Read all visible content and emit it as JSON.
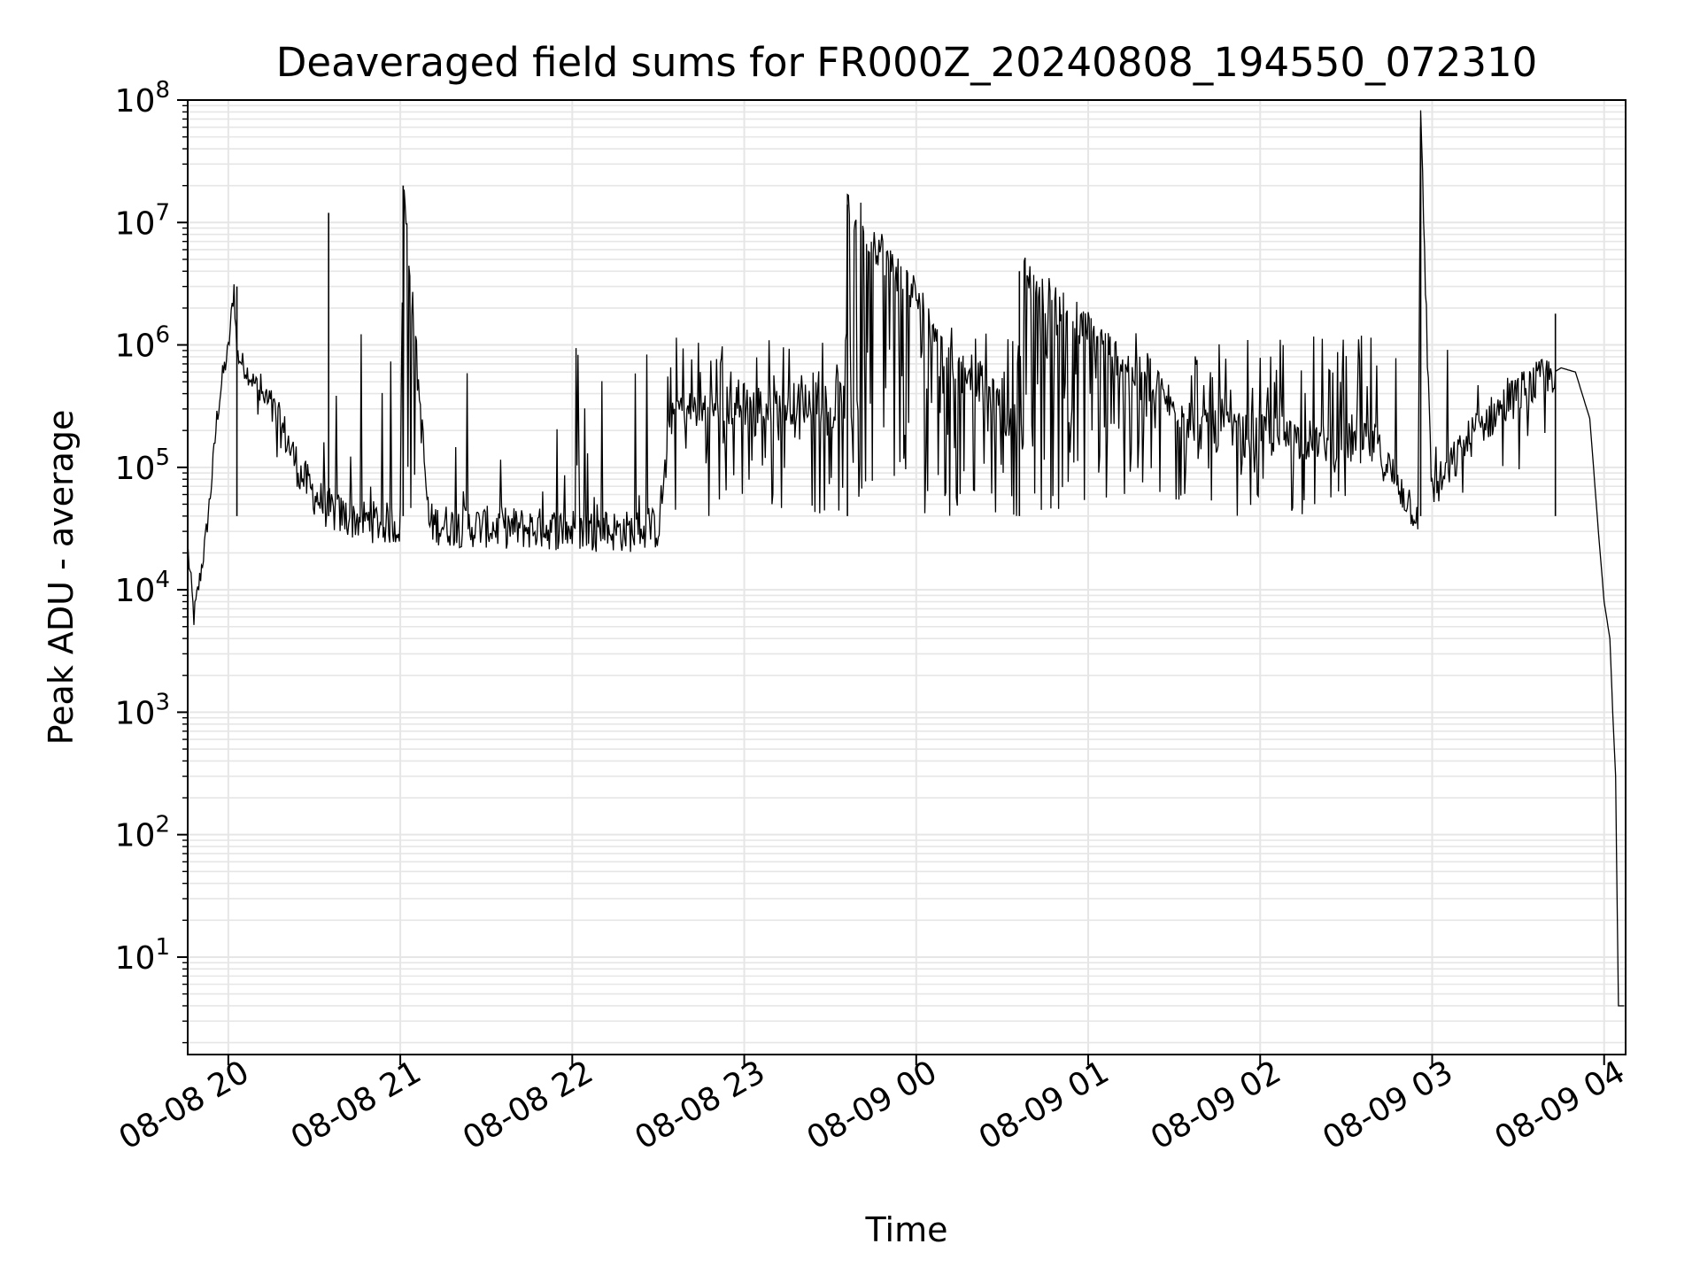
{
  "chart_data": {
    "type": "line",
    "title": "Deaveraged field sums for FR000Z_20240808_194550_072310",
    "xlabel": "Time",
    "ylabel": "Peak ADU - average",
    "yscale": "log",
    "ylim": [
      1.6,
      100000000
    ],
    "xlim": [
      "2024-08-08 19:45:50",
      "2024-08-09 04:07:30"
    ],
    "grid": true,
    "line_color": "#000000",
    "grid_color": "#e6e6e6",
    "x_tick_labels": [
      "08-08 20",
      "08-08 21",
      "08-08 22",
      "08-08 23",
      "08-09 00",
      "08-09 01",
      "08-09 02",
      "08-09 03",
      "08-09 04"
    ],
    "x_tick_values": [
      "2024-08-08 20:00",
      "2024-08-08 21:00",
      "2024-08-08 22:00",
      "2024-08-08 23:00",
      "2024-08-09 00:00",
      "2024-08-09 01:00",
      "2024-08-09 02:00",
      "2024-08-09 03:00",
      "2024-08-09 04:00"
    ],
    "y_tick_labels": [
      {
        "base": "10",
        "exp": "1",
        "value": 10
      },
      {
        "base": "10",
        "exp": "2",
        "value": 100
      },
      {
        "base": "10",
        "exp": "3",
        "value": 1000
      },
      {
        "base": "10",
        "exp": "4",
        "value": 10000
      },
      {
        "base": "10",
        "exp": "5",
        "value": 100000
      },
      {
        "base": "10",
        "exp": "6",
        "value": 1000000
      },
      {
        "base": "10",
        "exp": "7",
        "value": 10000000
      },
      {
        "base": "10",
        "exp": "8",
        "value": 100000000
      }
    ],
    "series": [
      {
        "x": [
          "2024-08-08 19:46",
          "2024-08-08 19:48",
          "2024-08-08 19:50",
          "2024-08-08 19:52",
          "2024-08-08 19:54",
          "2024-08-08 19:56",
          "2024-08-08 19:58",
          "2024-08-08 20:00",
          "2024-08-08 20:02",
          "2024-08-08 20:03",
          "2024-08-08 20:05",
          "2024-08-08 20:10",
          "2024-08-08 20:15",
          "2024-08-08 20:20",
          "2024-08-08 20:25",
          "2024-08-08 20:30",
          "2024-08-08 20:35",
          "2024-08-08 20:40",
          "2024-08-08 20:45",
          "2024-08-08 20:50",
          "2024-08-08 21:00",
          "2024-08-08 21:01",
          "2024-08-08 21:10",
          "2024-08-08 21:20",
          "2024-08-08 21:40",
          "2024-08-08 22:00",
          "2024-08-08 22:20",
          "2024-08-08 22:30",
          "2024-08-08 22:35",
          "2024-08-08 23:35",
          "2024-08-08 23:36",
          "2024-08-09 00:35",
          "2024-08-09 00:36",
          "2024-08-09 01:40",
          "2024-08-09 02:40",
          "2024-08-09 02:55",
          "2024-08-09 02:56",
          "2024-08-09 03:00",
          "2024-08-09 03:15",
          "2024-08-09 03:30",
          "2024-08-09 03:40",
          "2024-08-09 03:45",
          "2024-08-09 03:50",
          "2024-08-09 03:55",
          "2024-08-09 03:58",
          "2024-08-09 04:00",
          "2024-08-09 04:02",
          "2024-08-09 04:03",
          "2024-08-09 04:04",
          "2024-08-09 04:05",
          "2024-08-09 04:07"
        ],
        "y": [
          20000,
          6000,
          12000,
          25000,
          70000,
          250000,
          550000,
          900000,
          3000000,
          850000,
          700000,
          450000,
          300000,
          180000,
          90000,
          60000,
          45000,
          40000,
          38000,
          36000,
          34000,
          20000000,
          35000,
          33000,
          32000,
          31000,
          30000,
          32000,
          300000,
          350000,
          14000000,
          200000,
          4000000,
          200000,
          150000,
          40000,
          60000000,
          60000,
          200000,
          400000,
          550000,
          650000,
          600000,
          250000,
          30000,
          8000,
          4000,
          1000,
          300,
          4,
          4
        ]
      }
    ]
  }
}
